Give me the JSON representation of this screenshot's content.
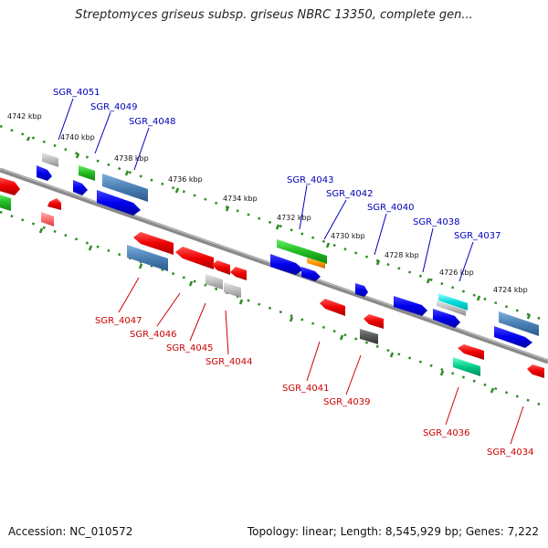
{
  "title": "Streptomyces griseus subsp. griseus NBRC 13350, complete gen...",
  "accession": "Accession: NC_010572",
  "summary": "Topology: linear; Length: 8,545,929 bp; Genes: 7,222",
  "colors": {
    "backbone": "#8a8a8a",
    "tick": "#2e8b22",
    "forward_label": "#0000bb",
    "reverse_label": "#cc0000"
  },
  "kbp_labels": [
    "4742 kbp",
    "4740 kbp",
    "4738 kbp",
    "4736 kbp",
    "4734 kbp",
    "4732 kbp",
    "4730 kbp",
    "4728 kbp",
    "4726 kbp",
    "4724 kbp"
  ],
  "forward_genes": [
    "SGR_4051",
    "SGR_4049",
    "SGR_4048",
    "SGR_4043",
    "SGR_4042",
    "SGR_4040",
    "SGR_4038",
    "SGR_4037"
  ],
  "reverse_genes": [
    "SGR_4047",
    "SGR_4046",
    "SGR_4045",
    "SGR_4044",
    "SGR_4041",
    "SGR_4039",
    "SGR_4036",
    "SGR_4034"
  ]
}
